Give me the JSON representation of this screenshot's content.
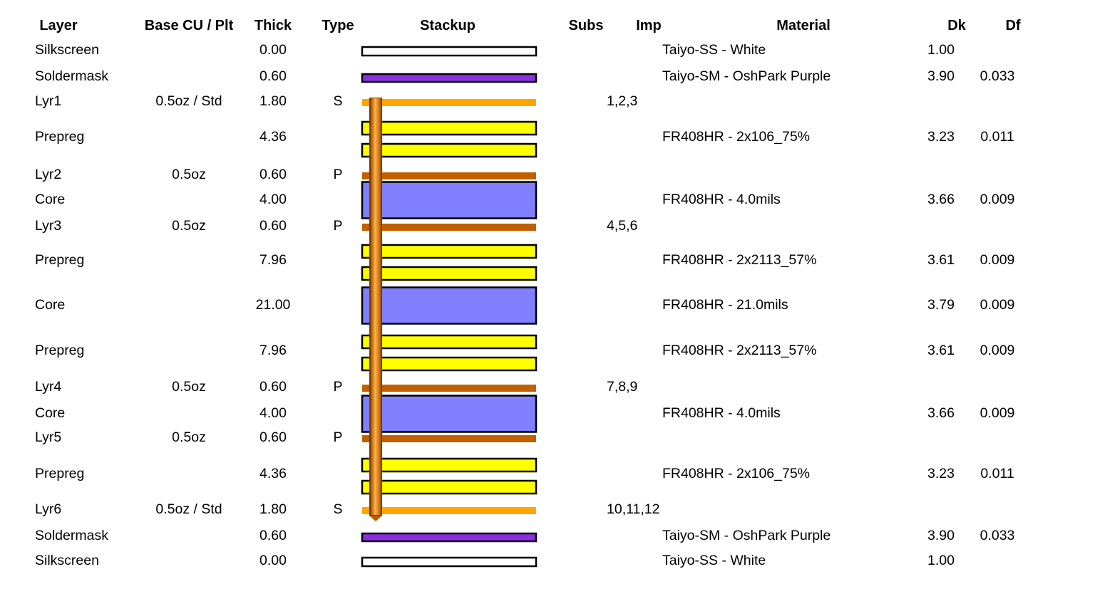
{
  "headers": {
    "layer": "Layer",
    "base_cu": "Base CU / Plt",
    "thick": "Thick",
    "type": "Type",
    "stackup": "Stackup",
    "subs": "Subs",
    "imp": "Imp",
    "material": "Material",
    "dk": "Dk",
    "df": "Df"
  },
  "colors": {
    "silkscreen": "#ffffff",
    "soldermask": "#8b30e0",
    "signal_copper": "#ffa500",
    "plane_copper": "#c06000",
    "prepreg": "#ffff00",
    "core": "#8080ff",
    "via": "#f08a1a"
  },
  "rows": [
    {
      "id": "silk-top",
      "kind": "silkscreen",
      "layer": "Silkscreen",
      "cu": "",
      "thick": "0.00",
      "type": "",
      "imp": "",
      "material": "Taiyo-SS - White",
      "dk": "1.00",
      "df": ""
    },
    {
      "id": "mask-top",
      "kind": "soldermask",
      "layer": "Soldermask",
      "cu": "",
      "thick": "0.60",
      "type": "",
      "imp": "",
      "material": "Taiyo-SM - OshPark Purple",
      "dk": "3.90",
      "df": "0.033"
    },
    {
      "id": "lyr1",
      "kind": "signal",
      "layer": "Lyr1",
      "cu": "0.5oz / Std",
      "thick": "1.80",
      "type": "S",
      "imp": "1,2,3",
      "material": "",
      "dk": "",
      "df": ""
    },
    {
      "id": "prepreg-1",
      "kind": "prepreg",
      "layer": "Prepreg",
      "cu": "",
      "thick": "4.36",
      "type": "",
      "imp": "",
      "material": "FR408HR - 2x106_75%",
      "dk": "3.23",
      "df": "0.011"
    },
    {
      "id": "lyr2",
      "kind": "plane",
      "layer": "Lyr2",
      "cu": "0.5oz",
      "thick": "0.60",
      "type": "P",
      "imp": "",
      "material": "",
      "dk": "",
      "df": ""
    },
    {
      "id": "core-1",
      "kind": "core",
      "layer": "Core",
      "cu": "",
      "thick": "4.00",
      "type": "",
      "imp": "",
      "material": "FR408HR - 4.0mils",
      "dk": "3.66",
      "df": "0.009"
    },
    {
      "id": "lyr3",
      "kind": "plane",
      "layer": "Lyr3",
      "cu": "0.5oz",
      "thick": "0.60",
      "type": "P",
      "imp": "4,5,6",
      "material": "",
      "dk": "",
      "df": ""
    },
    {
      "id": "prepreg-2",
      "kind": "prepreg",
      "layer": "Prepreg",
      "cu": "",
      "thick": "7.96",
      "type": "",
      "imp": "",
      "material": "FR408HR - 2x2113_57%",
      "dk": "3.61",
      "df": "0.009"
    },
    {
      "id": "core-2",
      "kind": "core",
      "layer": "Core",
      "cu": "",
      "thick": "21.00",
      "type": "",
      "imp": "",
      "material": "FR408HR - 21.0mils",
      "dk": "3.79",
      "df": "0.009"
    },
    {
      "id": "prepreg-3",
      "kind": "prepreg",
      "layer": "Prepreg",
      "cu": "",
      "thick": "7.96",
      "type": "",
      "imp": "",
      "material": "FR408HR - 2x2113_57%",
      "dk": "3.61",
      "df": "0.009"
    },
    {
      "id": "lyr4",
      "kind": "plane",
      "layer": "Lyr4",
      "cu": "0.5oz",
      "thick": "0.60",
      "type": "P",
      "imp": "7,8,9",
      "material": "",
      "dk": "",
      "df": ""
    },
    {
      "id": "core-3",
      "kind": "core",
      "layer": "Core",
      "cu": "",
      "thick": "4.00",
      "type": "",
      "imp": "",
      "material": "FR408HR - 4.0mils",
      "dk": "3.66",
      "df": "0.009"
    },
    {
      "id": "lyr5",
      "kind": "plane",
      "layer": "Lyr5",
      "cu": "0.5oz",
      "thick": "0.60",
      "type": "P",
      "imp": "",
      "material": "",
      "dk": "",
      "df": ""
    },
    {
      "id": "prepreg-4",
      "kind": "prepreg",
      "layer": "Prepreg",
      "cu": "",
      "thick": "4.36",
      "type": "",
      "imp": "",
      "material": "FR408HR - 2x106_75%",
      "dk": "3.23",
      "df": "0.011"
    },
    {
      "id": "lyr6",
      "kind": "signal",
      "layer": "Lyr6",
      "cu": "0.5oz / Std",
      "thick": "1.80",
      "type": "S",
      "imp": "10,11,12",
      "material": "",
      "dk": "",
      "df": ""
    },
    {
      "id": "mask-bot",
      "kind": "soldermask",
      "layer": "Soldermask",
      "cu": "",
      "thick": "0.60",
      "type": "",
      "imp": "",
      "material": "Taiyo-SM - OshPark Purple",
      "dk": "3.90",
      "df": "0.033"
    },
    {
      "id": "silk-bot",
      "kind": "silkscreen",
      "layer": "Silkscreen",
      "cu": "",
      "thick": "0.00",
      "type": "",
      "imp": "",
      "material": "Taiyo-SS - White",
      "dk": "1.00",
      "df": ""
    }
  ]
}
